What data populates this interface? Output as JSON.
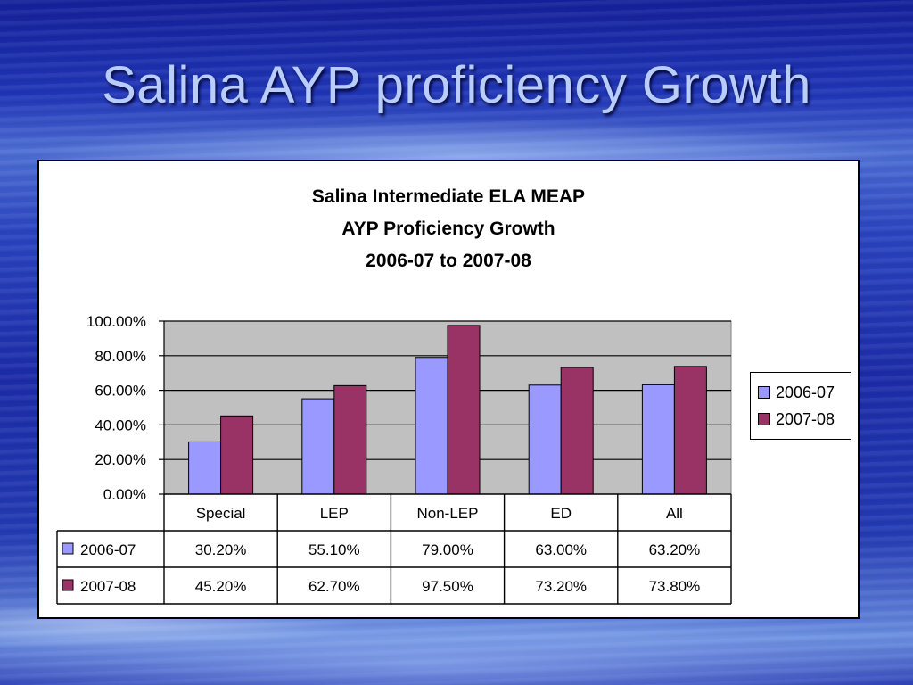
{
  "slide": {
    "title": "Salina AYP proficiency Growth"
  },
  "chart_data": {
    "type": "bar",
    "title_lines": [
      "Salina Intermediate ELA MEAP",
      "AYP Proficiency Growth",
      "2006-07 to 2007-08"
    ],
    "categories": [
      "Special",
      "LEP",
      "Non-LEP",
      "ED",
      "All"
    ],
    "series": [
      {
        "name": "2006-07",
        "color": "#9999ff",
        "values": [
          30.2,
          55.1,
          79.0,
          63.0,
          63.2
        ],
        "labels": [
          "30.20%",
          "55.10%",
          "79.00%",
          "63.00%",
          "63.20%"
        ]
      },
      {
        "name": "2007-08",
        "color": "#993366",
        "values": [
          45.2,
          62.7,
          97.5,
          73.2,
          73.8
        ],
        "labels": [
          "45.20%",
          "62.70%",
          "97.50%",
          "73.20%",
          "73.80%"
        ]
      }
    ],
    "ylim": [
      0,
      100
    ],
    "yticks": [
      "0.00%",
      "20.00%",
      "40.00%",
      "60.00%",
      "80.00%",
      "100.00%"
    ],
    "grid": true,
    "plot_background": "#c0c0c0",
    "legend_position": "right",
    "data_table": true
  }
}
